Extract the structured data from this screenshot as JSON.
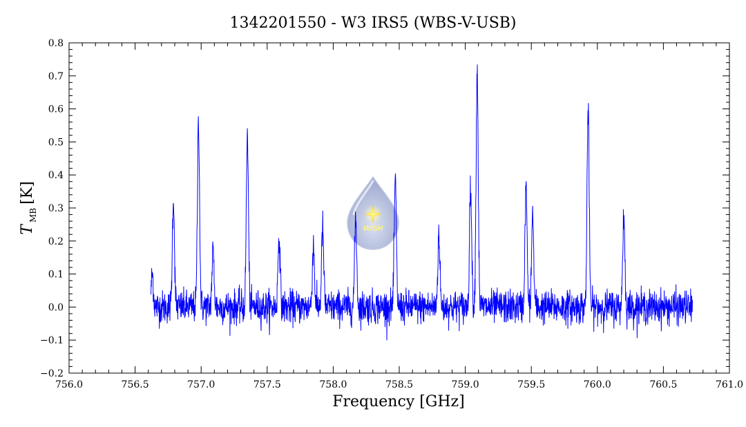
{
  "chart_data": {
    "type": "line",
    "title": "1342201550 - W3 IRS5 (WBS-V-USB)",
    "xlabel": "Frequency [GHz]",
    "ylabel_main": "T",
    "ylabel_sub": "MB",
    "ylabel_unit": "[K]",
    "xlim": [
      756.0,
      761.0
    ],
    "ylim": [
      -0.2,
      0.8
    ],
    "x_ticks": [
      "756.0",
      "756.5",
      "757.0",
      "757.5",
      "758.0",
      "758.5",
      "759.0",
      "759.5",
      "760.0",
      "760.5",
      "761.0"
    ],
    "y_ticks": [
      "−0.2",
      "−0.1",
      "0.0",
      "0.1",
      "0.2",
      "0.3",
      "0.4",
      "0.5",
      "0.6",
      "0.7",
      "0.8"
    ],
    "grid": false,
    "series_color": "#0000ff",
    "x_range": [
      756.62,
      760.72
    ],
    "noise_rms": 0.025,
    "peaks": [
      {
        "x": 756.63,
        "y": 0.1
      },
      {
        "x": 756.79,
        "y": 0.33
      },
      {
        "x": 756.98,
        "y": 0.57
      },
      {
        "x": 757.09,
        "y": 0.17
      },
      {
        "x": 757.35,
        "y": 0.52
      },
      {
        "x": 757.59,
        "y": 0.22
      },
      {
        "x": 757.85,
        "y": 0.19
      },
      {
        "x": 757.92,
        "y": 0.24
      },
      {
        "x": 758.17,
        "y": 0.27
      },
      {
        "x": 758.47,
        "y": 0.38
      },
      {
        "x": 758.8,
        "y": 0.22
      },
      {
        "x": 759.04,
        "y": 0.37
      },
      {
        "x": 759.09,
        "y": 0.72
      },
      {
        "x": 759.46,
        "y": 0.36
      },
      {
        "x": 759.51,
        "y": 0.28
      },
      {
        "x": 759.93,
        "y": 0.6
      },
      {
        "x": 760.2,
        "y": 0.28
      }
    ]
  },
  "logo": {
    "text": "WISH",
    "drop_color": "#a9b4d8",
    "star_color": "#fff26a"
  }
}
